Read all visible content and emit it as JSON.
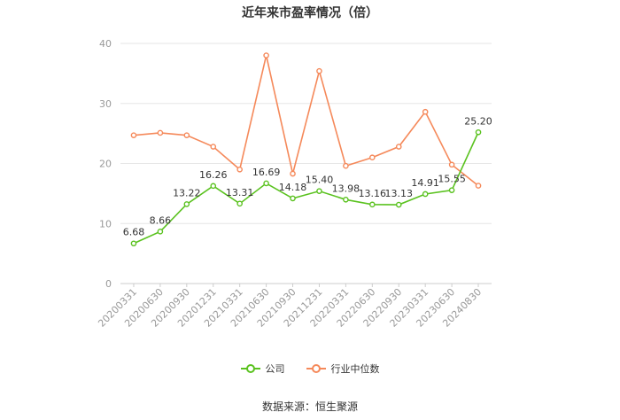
{
  "title": "近年来市盈率情况（倍）",
  "source": "数据来源：恒生聚源",
  "legend": {
    "company": "公司",
    "industry": "行业中位数"
  },
  "colors": {
    "company": "#5ac21f",
    "industry": "#f5895a",
    "grid": "#e6e6e6",
    "axis": "#cccccc"
  },
  "chart_data": {
    "type": "line",
    "title": "近年来市盈率情况（倍）",
    "ylim": [
      0,
      40
    ],
    "yticks": [
      0,
      10,
      20,
      30,
      40
    ],
    "categories": [
      "20200331",
      "20200630",
      "20200930",
      "20201231",
      "20210331",
      "20210630",
      "20210930",
      "20211231",
      "20220331",
      "20220630",
      "20220930",
      "20230331",
      "20230630",
      "20240830"
    ],
    "series": [
      {
        "name": "公司",
        "values": [
          6.68,
          8.66,
          13.22,
          16.26,
          13.31,
          16.69,
          14.18,
          15.4,
          13.98,
          13.16,
          13.13,
          14.91,
          15.55,
          25.2
        ],
        "labels": [
          "6.68",
          "8.66",
          "13.22",
          "16.26",
          "13.31",
          "16.69",
          "14.18",
          "15.40",
          "13.98",
          "13.16",
          "13.13",
          "14.91",
          "15.55",
          "25.20"
        ]
      },
      {
        "name": "行业中位数",
        "values": [
          24.7,
          25.1,
          24.7,
          22.8,
          19.0,
          38.0,
          18.3,
          35.4,
          19.6,
          21.0,
          22.8,
          28.6,
          19.8,
          16.3
        ]
      }
    ],
    "legend_position": "bottom",
    "grid": true
  }
}
